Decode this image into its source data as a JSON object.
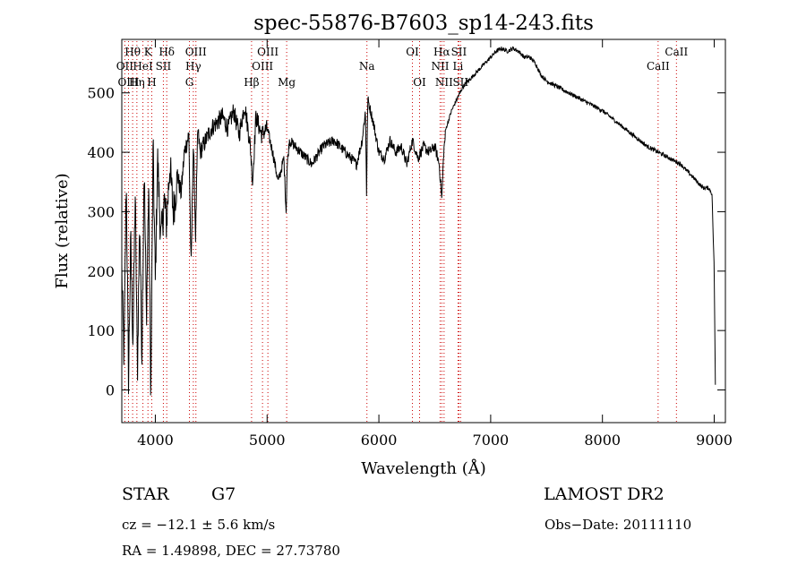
{
  "chart_data": {
    "type": "line",
    "title": "spec-55876-B7603_sp14-243.fits",
    "xlabel": "Wavelength (Å)",
    "ylabel": "Flux (relative)",
    "xlim": [
      3700,
      9100
    ],
    "ylim": [
      -55,
      590
    ],
    "xticks": [
      4000,
      5000,
      6000,
      7000,
      8000,
      9000
    ],
    "yticks": [
      0,
      100,
      200,
      300,
      400,
      500
    ],
    "grid": false,
    "line_color": "#000000",
    "marker_color": "#cc0000",
    "spectrum": {
      "x": [
        3700,
        3720,
        3740,
        3760,
        3780,
        3800,
        3820,
        3840,
        3860,
        3880,
        3900,
        3920,
        3940,
        3960,
        3980,
        4000,
        4020,
        4050,
        4080,
        4100,
        4130,
        4160,
        4200,
        4230,
        4260,
        4300,
        4320,
        4340,
        4360,
        4380,
        4400,
        4450,
        4500,
        4550,
        4600,
        4650,
        4700,
        4750,
        4800,
        4850,
        4870,
        4900,
        4950,
        5000,
        5050,
        5100,
        5150,
        5170,
        5180,
        5200,
        5250,
        5300,
        5400,
        5500,
        5600,
        5700,
        5800,
        5850,
        5880,
        5890,
        5900,
        5950,
        6000,
        6050,
        6100,
        6150,
        6200,
        6250,
        6300,
        6350,
        6400,
        6450,
        6500,
        6540,
        6563,
        6580,
        6600,
        6650,
        6700,
        6750,
        6800,
        6850,
        6900,
        6950,
        7000,
        7050,
        7100,
        7150,
        7200,
        7250,
        7300,
        7350,
        7400,
        7450,
        7500,
        7600,
        7700,
        7800,
        7900,
        8000,
        8100,
        8200,
        8300,
        8400,
        8500,
        8600,
        8700,
        8800,
        8850,
        8900,
        8950,
        8980,
        9000,
        9010
      ],
      "y": [
        200,
        50,
        360,
        20,
        250,
        80,
        330,
        30,
        290,
        60,
        380,
        120,
        340,
        -10,
        410,
        180,
        390,
        250,
        320,
        280,
        380,
        300,
        360,
        330,
        400,
        430,
        200,
        420,
        260,
        440,
        400,
        420,
        440,
        450,
        460,
        440,
        470,
        430,
        480,
        410,
        350,
        460,
        430,
        440,
        400,
        350,
        390,
        300,
        380,
        420,
        410,
        400,
        380,
        410,
        420,
        400,
        380,
        420,
        470,
        330,
        490,
        450,
        400,
        390,
        420,
        400,
        410,
        380,
        420,
        390,
        410,
        400,
        410,
        380,
        320,
        400,
        440,
        470,
        490,
        510,
        520,
        530,
        540,
        550,
        560,
        570,
        575,
        570,
        575,
        570,
        560,
        560,
        550,
        530,
        520,
        510,
        500,
        490,
        480,
        470,
        455,
        440,
        425,
        410,
        400,
        390,
        380,
        360,
        350,
        340,
        340,
        330,
        200,
        10
      ]
    },
    "lines": [
      {
        "label": "Hθ",
        "x": 3797,
        "row": 1
      },
      {
        "label": "OII",
        "x": 3727,
        "row": 2
      },
      {
        "label": "OIII",
        "x": 3760,
        "row": 3
      },
      {
        "label": "K",
        "x": 3934,
        "row": 1
      },
      {
        "label": "HeI",
        "x": 3889,
        "row": 2
      },
      {
        "label": "Hη",
        "x": 3835,
        "row": 3
      },
      {
        "label": "SII",
        "x": 4072,
        "row": 2
      },
      {
        "label": "H",
        "x": 3968,
        "row": 3
      },
      {
        "label": "Hδ",
        "x": 4102,
        "row": 1
      },
      {
        "label": "OIII",
        "x": 4363,
        "row": 1
      },
      {
        "label": "Hγ",
        "x": 4340,
        "row": 2
      },
      {
        "label": "G",
        "x": 4305,
        "row": 3
      },
      {
        "label": "Hβ",
        "x": 4861,
        "row": 3
      },
      {
        "label": "OIII",
        "x": 4959,
        "row": 2
      },
      {
        "label": "OIII",
        "x": 5007,
        "row": 1
      },
      {
        "label": "Mg",
        "x": 5175,
        "row": 3
      },
      {
        "label": "Na",
        "x": 5893,
        "row": 2
      },
      {
        "label": "OI",
        "x": 6300,
        "row": 1
      },
      {
        "label": "OI",
        "x": 6364,
        "row": 3
      },
      {
        "label": "Hα",
        "x": 6563,
        "row": 1
      },
      {
        "label": "NII",
        "x": 6548,
        "row": 2
      },
      {
        "label": "NII",
        "x": 6583,
        "row": 3
      },
      {
        "label": "SII",
        "x": 6716,
        "row": 1
      },
      {
        "label": "SII",
        "x": 6731,
        "row": 3
      },
      {
        "label": "Li",
        "x": 6708,
        "row": 2
      },
      {
        "label": "CaII",
        "x": 8498,
        "row": 2
      },
      {
        "label": "CaII",
        "x": 8662,
        "row": 1
      }
    ]
  },
  "info": {
    "object_class": "STAR",
    "subclass": "G7",
    "survey": "LAMOST DR2",
    "redshift": "cz = −12.1 ± 5.6 km/s",
    "obs_date": "Obs−Date: 20111110",
    "coords": "RA =    1.49898, DEC =   27.73780"
  }
}
